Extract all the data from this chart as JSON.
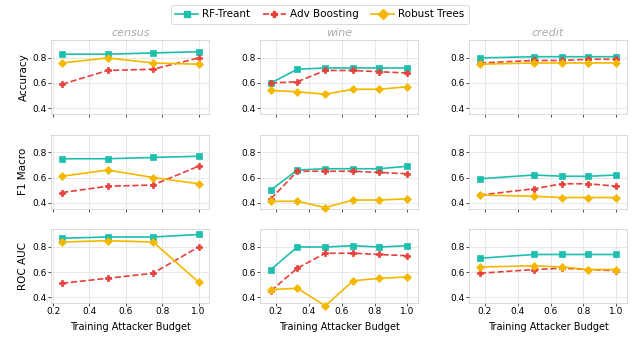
{
  "datasets": {
    "census": {
      "x": [
        0.25,
        0.5,
        0.75,
        1.0
      ],
      "accuracy": {
        "rf_treant": [
          0.83,
          0.83,
          0.84,
          0.85
        ],
        "adv_boosting": [
          0.59,
          0.7,
          0.71,
          0.8
        ],
        "robust_trees": [
          0.76,
          0.8,
          0.76,
          0.75
        ]
      },
      "f1_macro": {
        "rf_treant": [
          0.75,
          0.75,
          0.76,
          0.77
        ],
        "adv_boosting": [
          0.48,
          0.53,
          0.54,
          0.69
        ],
        "robust_trees": [
          0.61,
          0.66,
          0.6,
          0.55
        ]
      },
      "roc_auc": {
        "rf_treant": [
          0.87,
          0.88,
          0.88,
          0.9
        ],
        "adv_boosting": [
          0.51,
          0.55,
          0.59,
          0.8
        ],
        "robust_trees": [
          0.84,
          0.85,
          0.84,
          0.52
        ]
      }
    },
    "wine": {
      "x": [
        0.17,
        0.33,
        0.5,
        0.67,
        0.83,
        1.0
      ],
      "accuracy": {
        "rf_treant": [
          0.6,
          0.71,
          0.72,
          0.72,
          0.72,
          0.72
        ],
        "adv_boosting": [
          0.6,
          0.61,
          0.7,
          0.7,
          0.69,
          0.68
        ],
        "robust_trees": [
          0.54,
          0.53,
          0.51,
          0.55,
          0.55,
          0.57
        ]
      },
      "f1_macro": {
        "rf_treant": [
          0.5,
          0.66,
          0.67,
          0.67,
          0.67,
          0.69
        ],
        "adv_boosting": [
          0.43,
          0.65,
          0.65,
          0.65,
          0.64,
          0.63
        ],
        "robust_trees": [
          0.41,
          0.41,
          0.36,
          0.42,
          0.42,
          0.43
        ]
      },
      "roc_auc": {
        "rf_treant": [
          0.62,
          0.8,
          0.8,
          0.81,
          0.8,
          0.81
        ],
        "adv_boosting": [
          0.45,
          0.63,
          0.75,
          0.75,
          0.74,
          0.73
        ],
        "robust_trees": [
          0.46,
          0.47,
          0.33,
          0.53,
          0.55,
          0.56
        ]
      }
    },
    "credit": {
      "x": [
        0.17,
        0.5,
        0.67,
        0.83,
        1.0
      ],
      "accuracy": {
        "rf_treant": [
          0.8,
          0.81,
          0.81,
          0.81,
          0.81
        ],
        "adv_boosting": [
          0.76,
          0.78,
          0.78,
          0.79,
          0.79
        ],
        "robust_trees": [
          0.75,
          0.76,
          0.76,
          0.76,
          0.76
        ]
      },
      "f1_macro": {
        "rf_treant": [
          0.59,
          0.62,
          0.61,
          0.61,
          0.62
        ],
        "adv_boosting": [
          0.46,
          0.51,
          0.55,
          0.55,
          0.53
        ],
        "robust_trees": [
          0.46,
          0.45,
          0.44,
          0.44,
          0.44
        ]
      },
      "roc_auc": {
        "rf_treant": [
          0.71,
          0.74,
          0.74,
          0.74,
          0.74
        ],
        "adv_boosting": [
          0.59,
          0.62,
          0.63,
          0.62,
          0.61
        ],
        "robust_trees": [
          0.64,
          0.65,
          0.64,
          0.62,
          0.62
        ]
      }
    }
  },
  "colors": {
    "rf_treant": "#1dbfad",
    "adv_boosting": "#e8403a",
    "robust_trees": "#f5b800"
  },
  "markers": {
    "rf_treant": "s",
    "adv_boosting": "P",
    "robust_trees": "D"
  },
  "linestyles": {
    "rf_treant": "-",
    "adv_boosting": "--",
    "robust_trees": "-"
  },
  "col_titles": [
    "census",
    "wine",
    "credit"
  ],
  "row_labels": [
    "Accuracy",
    "F1 Macro",
    "ROC AUC"
  ],
  "xlabel": "Training Attacker Budget",
  "ylim": [
    0.35,
    0.94
  ],
  "yticks": [
    0.4,
    0.6,
    0.8
  ],
  "legend_labels": [
    "RF-Treant",
    "Adv Boosting",
    "Robust Trees"
  ],
  "background_color": "#ffffff",
  "grid_color": "#e8e8e8",
  "spine_color": "#cccccc",
  "title_color": "#aaaaaa"
}
